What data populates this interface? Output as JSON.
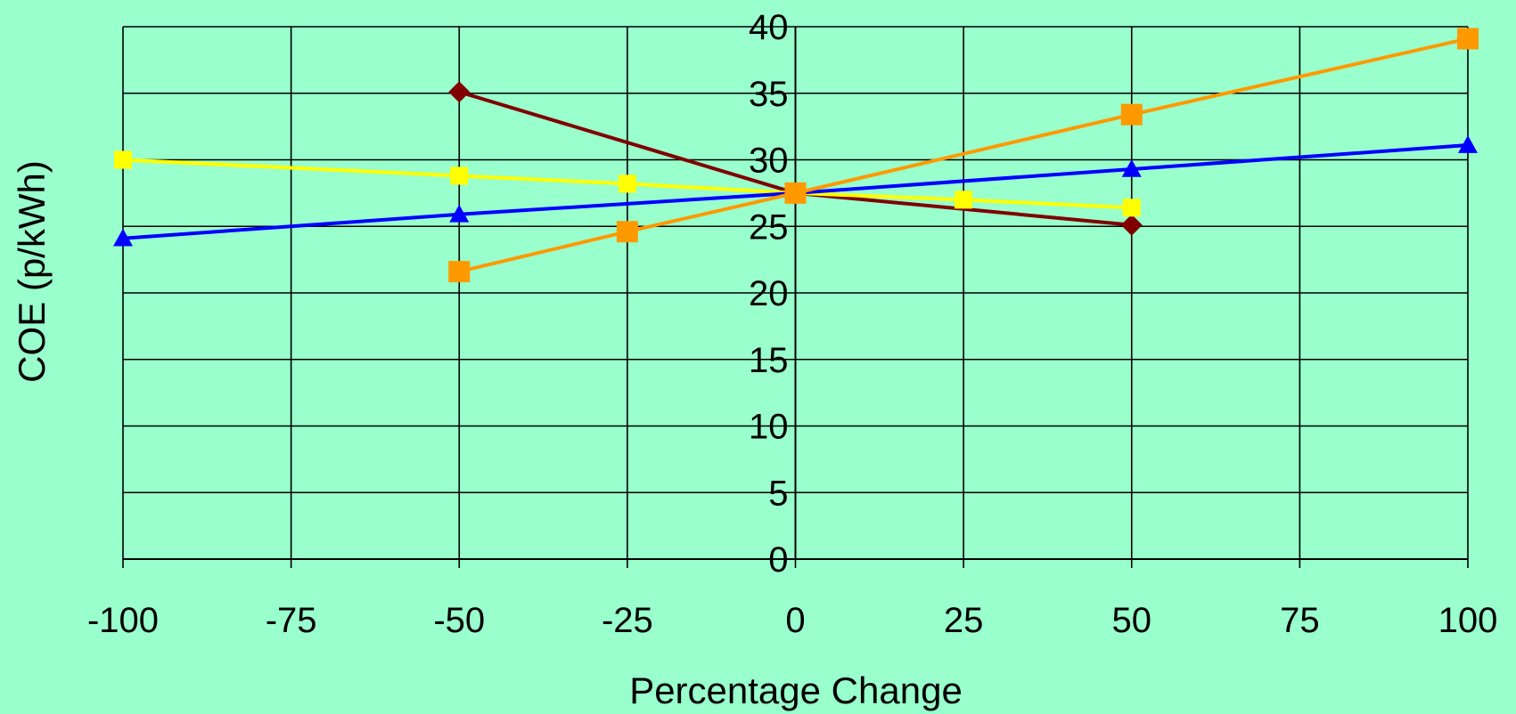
{
  "chart_data": {
    "type": "line",
    "title": "",
    "xlabel": "Percentage Change",
    "ylabel": "COE  (p/kWh)",
    "xlim": [
      -100,
      100
    ],
    "ylim": [
      0,
      40
    ],
    "xticks": [
      "-100",
      "-75",
      "-50",
      "-25",
      "0",
      "25",
      "50",
      "75",
      "100"
    ],
    "yticks": [
      "0",
      "5",
      "10",
      "15",
      "20",
      "25",
      "30",
      "35",
      "40"
    ],
    "grid": true,
    "legend": "none",
    "series": [
      {
        "color": "#800000",
        "marker": "diamond",
        "points": [
          {
            "x": -50,
            "y": 35.1
          },
          {
            "x": 0,
            "y": 27.5
          },
          {
            "x": 50,
            "y": 25.1
          }
        ]
      },
      {
        "color": "#ffff00",
        "marker": "square",
        "points": [
          {
            "x": -100,
            "y": 30.0
          },
          {
            "x": -50,
            "y": 28.8
          },
          {
            "x": -25,
            "y": 28.2
          },
          {
            "x": 0,
            "y": 27.5
          },
          {
            "x": 25,
            "y": 27.0
          },
          {
            "x": 50,
            "y": 26.4
          }
        ]
      },
      {
        "color": "#0000ff",
        "marker": "triangle",
        "points": [
          {
            "x": -100,
            "y": 24.1
          },
          {
            "x": -50,
            "y": 25.9
          },
          {
            "x": 0,
            "y": 27.5
          },
          {
            "x": 50,
            "y": 29.3
          },
          {
            "x": 100,
            "y": 31.1
          }
        ]
      },
      {
        "color": "#ff9900",
        "marker": "square",
        "points": [
          {
            "x": -50,
            "y": 21.6
          },
          {
            "x": -25,
            "y": 24.6
          },
          {
            "x": 0,
            "y": 27.5
          },
          {
            "x": 50,
            "y": 33.4
          },
          {
            "x": 100,
            "y": 39.1
          }
        ]
      }
    ]
  }
}
